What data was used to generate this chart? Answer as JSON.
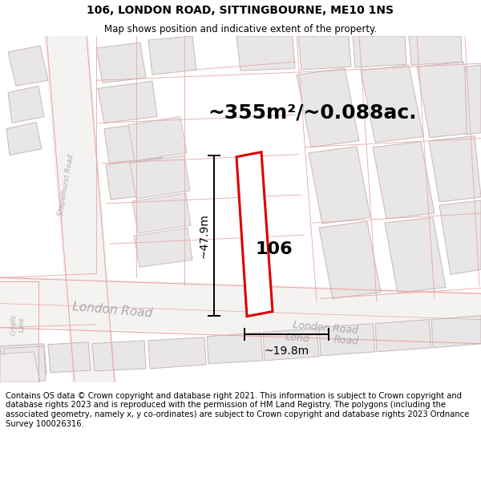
{
  "title": "106, LONDON ROAD, SITTINGBOURNE, ME10 1NS",
  "subtitle": "Map shows position and indicative extent of the property.",
  "area_text": "~355m²/~0.088ac.",
  "label_106": "106",
  "dim_height": "~47.9m",
  "dim_width": "~19.8m",
  "footer": "Contains OS data © Crown copyright and database right 2021. This information is subject to Crown copyright and database rights 2023 and is reproduced with the permission of HM Land Registry. The polygons (including the associated geometry, namely x, y co-ordinates) are subject to Crown copyright and database rights 2023 Ordnance Survey 100026316.",
  "map_bg": "#ffffff",
  "building_fill": "#e8e6e6",
  "building_edge": "#c8b8b8",
  "road_line_color": "#e8a8a8",
  "highlight_fill": "#ffffff",
  "highlight_edge": "#dd0000",
  "dim_line_color": "#000000",
  "road_label_color": "#aaaaaa",
  "title_fontsize": 10,
  "subtitle_fontsize": 8.5,
  "area_fontsize": 18,
  "label_fontsize": 16,
  "dim_fontsize": 10,
  "footer_fontsize": 7.2
}
